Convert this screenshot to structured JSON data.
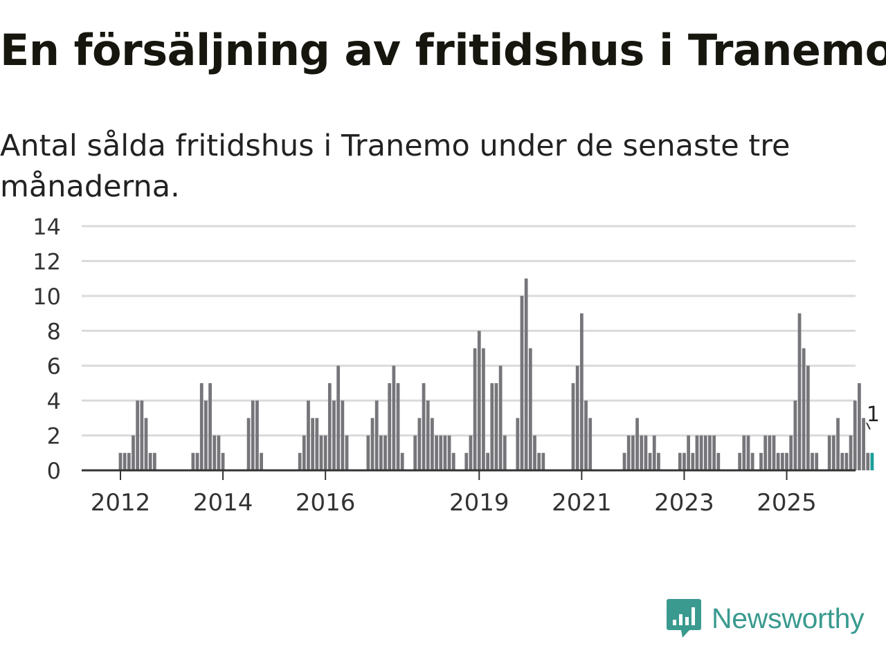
{
  "title": "En försäljning av fritidshus i Tranemo",
  "subtitle": "Antal sålda fritidshus i Tranemo under de senaste tre månaderna.",
  "brand": {
    "name": "Newsworthy",
    "icon": "newsworthy-chart-icon",
    "color": "#3a9a8f"
  },
  "colors": {
    "bar": "#76757a",
    "highlight": "#1a9e98",
    "grid": "#dadada",
    "axis": "#333333"
  },
  "chart_data": {
    "type": "bar",
    "ylim": [
      0,
      14
    ],
    "yticks": [
      "0",
      "2",
      "4",
      "6",
      "8",
      "10",
      "12",
      "14"
    ],
    "xticks": [
      {
        "label": "2012",
        "month_index": 0
      },
      {
        "label": "2014",
        "month_index": 24
      },
      {
        "label": "2016",
        "month_index": 48
      },
      {
        "label": "2019",
        "month_index": 84
      },
      {
        "label": "2021",
        "month_index": 108
      },
      {
        "label": "2023",
        "month_index": 132
      },
      {
        "label": "2025",
        "month_index": 156
      }
    ],
    "x_start_month": -9,
    "grid": true,
    "annotation": {
      "text": "1",
      "target": "last bar"
    },
    "values": [
      0,
      0,
      0,
      0,
      0,
      0,
      0,
      0,
      0,
      1,
      1,
      1,
      2,
      4,
      4,
      3,
      1,
      1,
      0,
      0,
      0,
      0,
      0,
      0,
      0,
      0,
      1,
      1,
      5,
      4,
      5,
      2,
      2,
      1,
      0,
      0,
      0,
      0,
      0,
      3,
      4,
      4,
      1,
      0,
      0,
      0,
      0,
      0,
      0,
      0,
      0,
      1,
      2,
      4,
      3,
      3,
      2,
      2,
      5,
      4,
      6,
      4,
      2,
      0,
      0,
      0,
      0,
      2,
      3,
      4,
      2,
      2,
      5,
      6,
      5,
      1,
      0,
      0,
      2,
      3,
      5,
      4,
      3,
      2,
      2,
      2,
      2,
      1,
      0,
      0,
      1,
      2,
      7,
      8,
      7,
      1,
      5,
      5,
      6,
      2,
      0,
      0,
      3,
      10,
      11,
      7,
      2,
      1,
      1,
      0,
      0,
      0,
      0,
      0,
      0,
      5,
      6,
      9,
      4,
      3,
      0,
      0,
      0,
      0,
      0,
      0,
      0,
      1,
      2,
      2,
      3,
      2,
      2,
      1,
      2,
      1,
      0,
      0,
      0,
      0,
      1,
      1,
      2,
      1,
      2,
      2,
      2,
      2,
      2,
      1,
      0,
      0,
      0,
      0,
      1,
      2,
      2,
      1,
      0,
      1,
      2,
      2,
      2,
      1,
      1,
      1,
      2,
      4,
      9,
      7,
      6,
      1,
      1,
      0,
      0,
      2,
      2,
      3,
      1,
      1,
      2,
      4,
      5,
      3,
      1,
      1
    ]
  }
}
